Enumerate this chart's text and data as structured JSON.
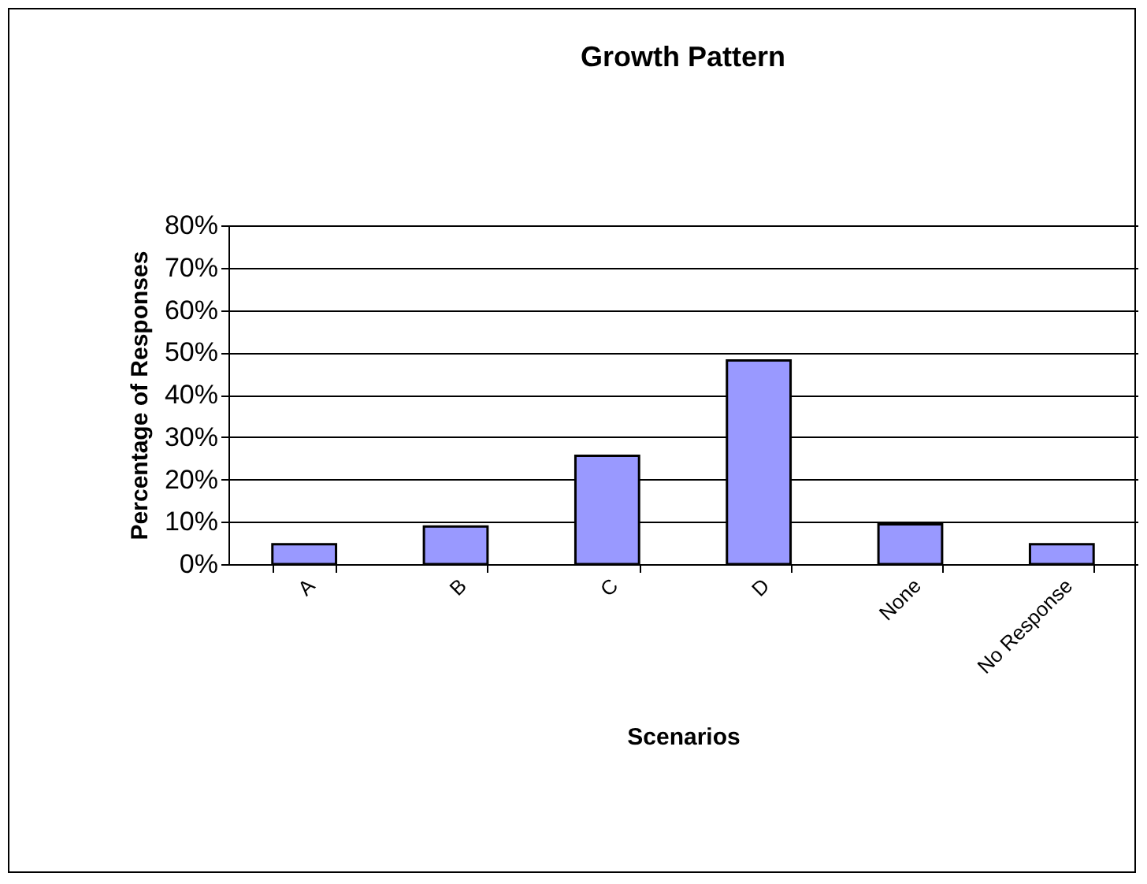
{
  "chart_data": {
    "type": "bar",
    "title": "Growth Pattern",
    "xlabel": "Scenarios",
    "ylabel": "Percentage of Responses",
    "categories": [
      "A",
      "B",
      "C",
      "D",
      "None",
      "No Response"
    ],
    "values": [
      4.7,
      8.9,
      25.6,
      48.1,
      9.4,
      4.7
    ],
    "color": "#9999ff",
    "ylim": [
      0,
      80
    ],
    "yticks": [
      {
        "value": 0,
        "label": "0%"
      },
      {
        "value": 10,
        "label": "10%"
      },
      {
        "value": 20,
        "label": "20%"
      },
      {
        "value": 30,
        "label": "30%"
      },
      {
        "value": 40,
        "label": "40%"
      },
      {
        "value": 50,
        "label": "50%"
      },
      {
        "value": 60,
        "label": "60%"
      },
      {
        "value": 70,
        "label": "70%"
      },
      {
        "value": 80,
        "label": "80%"
      }
    ],
    "grid": "y"
  }
}
